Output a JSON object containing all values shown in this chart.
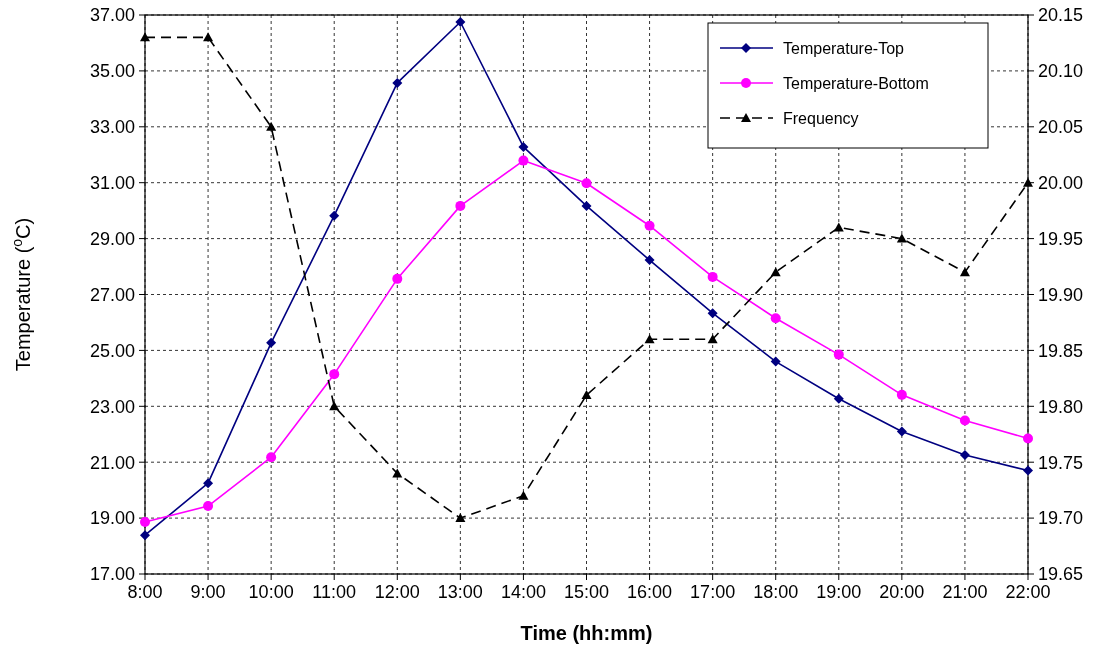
{
  "chart_data": {
    "type": "line",
    "xlabel": "Time (hh:mm)",
    "ylabel": "Temperature ($^{o}$C)",
    "categories": [
      "8:00",
      "9:00",
      "10:00",
      "11:00",
      "12:00",
      "13:00",
      "14:00",
      "15:00",
      "16:00",
      "17:00",
      "18:00",
      "19:00",
      "20:00",
      "21:00",
      "22:00"
    ],
    "series": [
      {
        "name": "Temperature-Top",
        "color": "#000080",
        "marker": "diamond",
        "line_style": "solid",
        "values": [
          18.39,
          20.25,
          25.27,
          29.82,
          34.57,
          36.75,
          32.28,
          30.17,
          28.23,
          26.33,
          24.6,
          23.27,
          22.1,
          21.26,
          20.7
        ]
      },
      {
        "name": "Temperature-Bottom",
        "color": "#ff00ff",
        "marker": "circle",
        "line_style": "solid",
        "values": [
          18.86,
          19.43,
          21.18,
          24.15,
          27.56,
          30.17,
          31.79,
          30.98,
          29.46,
          27.63,
          26.15,
          24.85,
          23.41,
          22.49,
          21.85
        ]
      },
      {
        "name": "Frequency",
        "color": "#000000",
        "marker": "triangle",
        "line_style": "dashed",
        "axis": "y2",
        "values": [
          20.13,
          20.13,
          20.05,
          19.8,
          19.74,
          19.7,
          19.72,
          19.81,
          19.86,
          19.86,
          19.92,
          19.96,
          19.95,
          19.92,
          20.0
        ]
      }
    ],
    "ylim": [
      17,
      37
    ],
    "yticks": [
      {
        "value": 17,
        "label": "17.00"
      },
      {
        "value": 19,
        "label": "19.00"
      },
      {
        "value": 21,
        "label": "21.00"
      },
      {
        "value": 23,
        "label": "23.00"
      },
      {
        "value": 25,
        "label": "25.00"
      },
      {
        "value": 27,
        "label": "27.00"
      },
      {
        "value": 29,
        "label": "29.00"
      },
      {
        "value": 31,
        "label": "31.00"
      },
      {
        "value": 33,
        "label": "33.00"
      },
      {
        "value": 35,
        "label": "35.00"
      },
      {
        "value": 37,
        "label": "37.00"
      }
    ],
    "y2lim": [
      19.65,
      20.15
    ],
    "y2ticks": [
      {
        "value": 19.65,
        "label": "19.65"
      },
      {
        "value": 19.7,
        "label": "19.70"
      },
      {
        "value": 19.75,
        "label": "19.75"
      },
      {
        "value": 19.8,
        "label": "19.80"
      },
      {
        "value": 19.85,
        "label": "19.85"
      },
      {
        "value": 19.9,
        "label": "19.90"
      },
      {
        "value": 19.95,
        "label": "19.95"
      },
      {
        "value": 20.0,
        "label": "20.00"
      },
      {
        "value": 20.05,
        "label": "20.05"
      },
      {
        "value": 20.1,
        "label": "20.10"
      },
      {
        "value": 20.15,
        "label": "20.15"
      }
    ],
    "grid": true,
    "legend": "top right"
  }
}
